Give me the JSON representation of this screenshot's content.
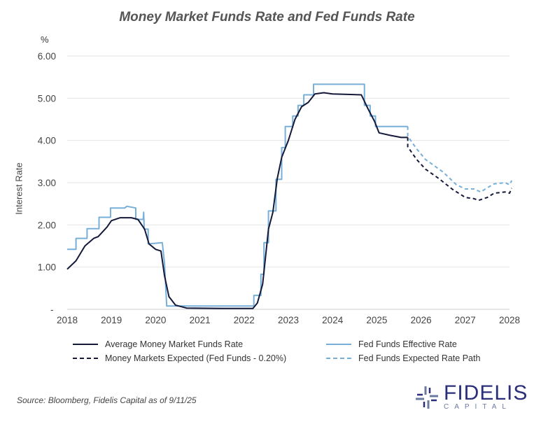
{
  "chart_data": {
    "type": "line",
    "title": "Money Market Funds Rate and Fed Funds Rate",
    "unit_label": "%",
    "ylabel": "Interest Rate",
    "xlim": [
      2018,
      2028
    ],
    "ylim": [
      0,
      6
    ],
    "x_ticks": [
      "2018",
      "2019",
      "2020",
      "2021",
      "2022",
      "2023",
      "2024",
      "2025",
      "2026",
      "2027",
      "2028"
    ],
    "y_ticks": [
      "-",
      "1.00",
      "2.00",
      "3.00",
      "4.00",
      "5.00",
      "6.00"
    ],
    "grid": "horizontal",
    "legend_position": "bottom",
    "series": [
      {
        "name": "Average Money Market Funds Rate",
        "color": "#14193a",
        "style": "solid",
        "points": [
          [
            2018,
            0.95
          ],
          [
            2018.2,
            1.15
          ],
          [
            2018.4,
            1.5
          ],
          [
            2018.6,
            1.68
          ],
          [
            2018.7,
            1.72
          ],
          [
            2018.9,
            1.95
          ],
          [
            2019.0,
            2.1
          ],
          [
            2019.2,
            2.17
          ],
          [
            2019.45,
            2.17
          ],
          [
            2019.6,
            2.13
          ],
          [
            2019.75,
            1.9
          ],
          [
            2019.85,
            1.55
          ],
          [
            2020.0,
            1.42
          ],
          [
            2020.12,
            1.38
          ],
          [
            2020.2,
            0.8
          ],
          [
            2020.3,
            0.3
          ],
          [
            2020.45,
            0.1
          ],
          [
            2020.7,
            0.03
          ],
          [
            2021.5,
            0.02
          ],
          [
            2022.2,
            0.02
          ],
          [
            2022.3,
            0.15
          ],
          [
            2022.42,
            0.6
          ],
          [
            2022.55,
            1.9
          ],
          [
            2022.65,
            2.3
          ],
          [
            2022.75,
            3.1
          ],
          [
            2022.85,
            3.6
          ],
          [
            2023.0,
            4.0
          ],
          [
            2023.15,
            4.5
          ],
          [
            2023.3,
            4.8
          ],
          [
            2023.45,
            4.9
          ],
          [
            2023.6,
            5.1
          ],
          [
            2023.8,
            5.13
          ],
          [
            2024.0,
            5.1
          ],
          [
            2024.65,
            5.08
          ],
          [
            2024.8,
            4.75
          ],
          [
            2024.95,
            4.45
          ],
          [
            2025.05,
            4.18
          ],
          [
            2025.3,
            4.12
          ],
          [
            2025.55,
            4.07
          ],
          [
            2025.7,
            4.07
          ]
        ]
      },
      {
        "name": "Fed Funds Effective Rate",
        "color": "#77afd8",
        "style": "solid",
        "points": [
          [
            2018,
            1.42
          ],
          [
            2018.2,
            1.42
          ],
          [
            2018.2,
            1.68
          ],
          [
            2018.45,
            1.68
          ],
          [
            2018.45,
            1.91
          ],
          [
            2018.72,
            1.91
          ],
          [
            2018.72,
            2.18
          ],
          [
            2018.98,
            2.18
          ],
          [
            2018.98,
            2.4
          ],
          [
            2019.3,
            2.4
          ],
          [
            2019.35,
            2.44
          ],
          [
            2019.55,
            2.4
          ],
          [
            2019.55,
            2.13
          ],
          [
            2019.72,
            2.13
          ],
          [
            2019.73,
            2.3
          ],
          [
            2019.74,
            1.9
          ],
          [
            2019.83,
            1.9
          ],
          [
            2019.83,
            1.55
          ],
          [
            2020.15,
            1.58
          ],
          [
            2020.2,
            1.1
          ],
          [
            2020.25,
            0.08
          ],
          [
            2021.0,
            0.08
          ],
          [
            2022.22,
            0.08
          ],
          [
            2022.22,
            0.33
          ],
          [
            2022.38,
            0.33
          ],
          [
            2022.38,
            0.83
          ],
          [
            2022.45,
            0.83
          ],
          [
            2022.45,
            1.58
          ],
          [
            2022.55,
            1.58
          ],
          [
            2022.55,
            2.33
          ],
          [
            2022.72,
            2.33
          ],
          [
            2022.72,
            3.08
          ],
          [
            2022.85,
            3.08
          ],
          [
            2022.85,
            3.83
          ],
          [
            2022.93,
            3.83
          ],
          [
            2022.93,
            4.33
          ],
          [
            2023.1,
            4.33
          ],
          [
            2023.1,
            4.58
          ],
          [
            2023.22,
            4.58
          ],
          [
            2023.22,
            4.83
          ],
          [
            2023.35,
            4.83
          ],
          [
            2023.35,
            5.08
          ],
          [
            2023.57,
            5.08
          ],
          [
            2023.57,
            5.33
          ],
          [
            2024.72,
            5.33
          ],
          [
            2024.72,
            4.83
          ],
          [
            2024.85,
            4.83
          ],
          [
            2024.85,
            4.58
          ],
          [
            2024.97,
            4.58
          ],
          [
            2024.97,
            4.33
          ],
          [
            2025.7,
            4.33
          ]
        ]
      },
      {
        "name": "Money Markets Expected (Fed Funds - 0.20%)",
        "color": "#14193a",
        "style": "dashed",
        "points": [
          [
            2025.7,
            4.07
          ],
          [
            2025.7,
            3.85
          ],
          [
            2025.9,
            3.55
          ],
          [
            2026.1,
            3.32
          ],
          [
            2026.4,
            3.1
          ],
          [
            2026.7,
            2.85
          ],
          [
            2027.0,
            2.65
          ],
          [
            2027.2,
            2.62
          ],
          [
            2027.3,
            2.58
          ],
          [
            2027.5,
            2.65
          ],
          [
            2027.65,
            2.75
          ],
          [
            2027.9,
            2.78
          ],
          [
            2028.0,
            2.75
          ],
          [
            2028.05,
            2.87
          ]
        ]
      },
      {
        "name": "Fed Funds Expected Rate Path",
        "color": "#77afd8",
        "style": "dashed",
        "points": [
          [
            2025.7,
            4.33
          ],
          [
            2025.7,
            4.1
          ],
          [
            2025.9,
            3.8
          ],
          [
            2026.1,
            3.55
          ],
          [
            2026.5,
            3.25
          ],
          [
            2026.8,
            2.95
          ],
          [
            2027.0,
            2.85
          ],
          [
            2027.2,
            2.85
          ],
          [
            2027.35,
            2.78
          ],
          [
            2027.5,
            2.88
          ],
          [
            2027.65,
            2.97
          ],
          [
            2027.9,
            3.0
          ],
          [
            2028.0,
            2.95
          ],
          [
            2028.05,
            3.05
          ]
        ]
      }
    ]
  },
  "source": "Source: Bloomberg, Fidelis Capital as of 9/11/25",
  "logo": {
    "name": "FIDELIS",
    "sub": "CAPITAL"
  }
}
